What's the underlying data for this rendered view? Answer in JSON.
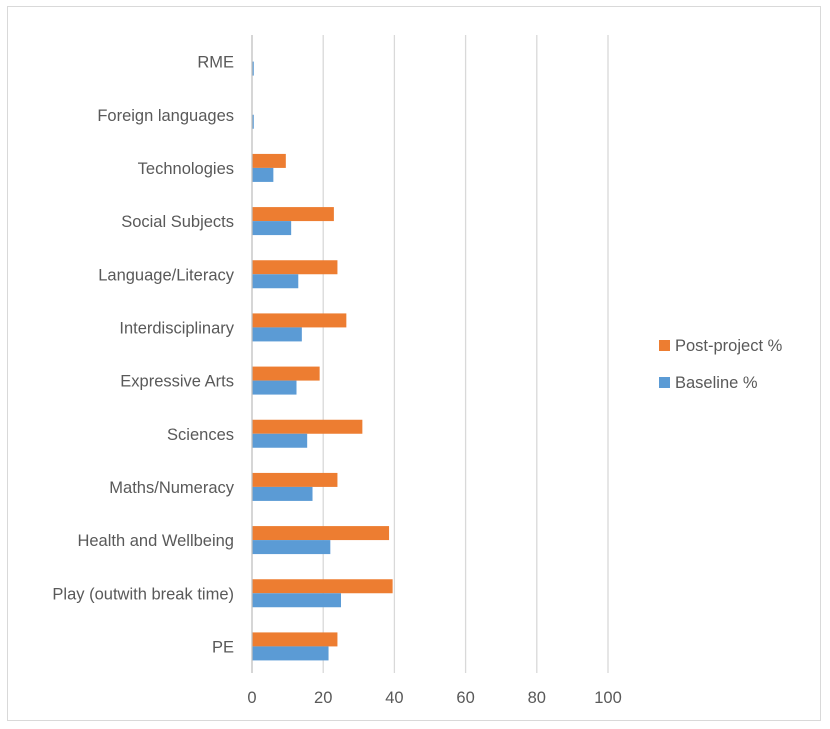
{
  "chart_data": {
    "type": "bar",
    "orientation": "horizontal",
    "title": "",
    "xlabel": "",
    "ylabel": "",
    "xlim": [
      0,
      100
    ],
    "xticks": [
      0,
      20,
      40,
      60,
      80,
      100
    ],
    "grid": true,
    "legend_position": "right",
    "categories": [
      "RME",
      "Foreign languages",
      "Technologies",
      "Social Subjects",
      "Language/Literacy",
      "Interdisciplinary",
      "Expressive Arts",
      "Sciences",
      "Maths/Numeracy",
      "Health and Wellbeing",
      "Play (outwith break time)",
      "PE"
    ],
    "series": [
      {
        "name": "Post-project %",
        "color": "#ED7D31",
        "values": [
          0,
          0,
          9.5,
          23,
          24,
          26.5,
          19,
          31,
          24,
          38.5,
          39.5,
          24
        ]
      },
      {
        "name": "Baseline %",
        "color": "#5B9BD5",
        "values": [
          0.5,
          0.5,
          6,
          11,
          13,
          14,
          12.5,
          15.5,
          17,
          22,
          25,
          21.5
        ]
      }
    ],
    "legend": [
      "Post-project %",
      "Baseline %"
    ]
  }
}
